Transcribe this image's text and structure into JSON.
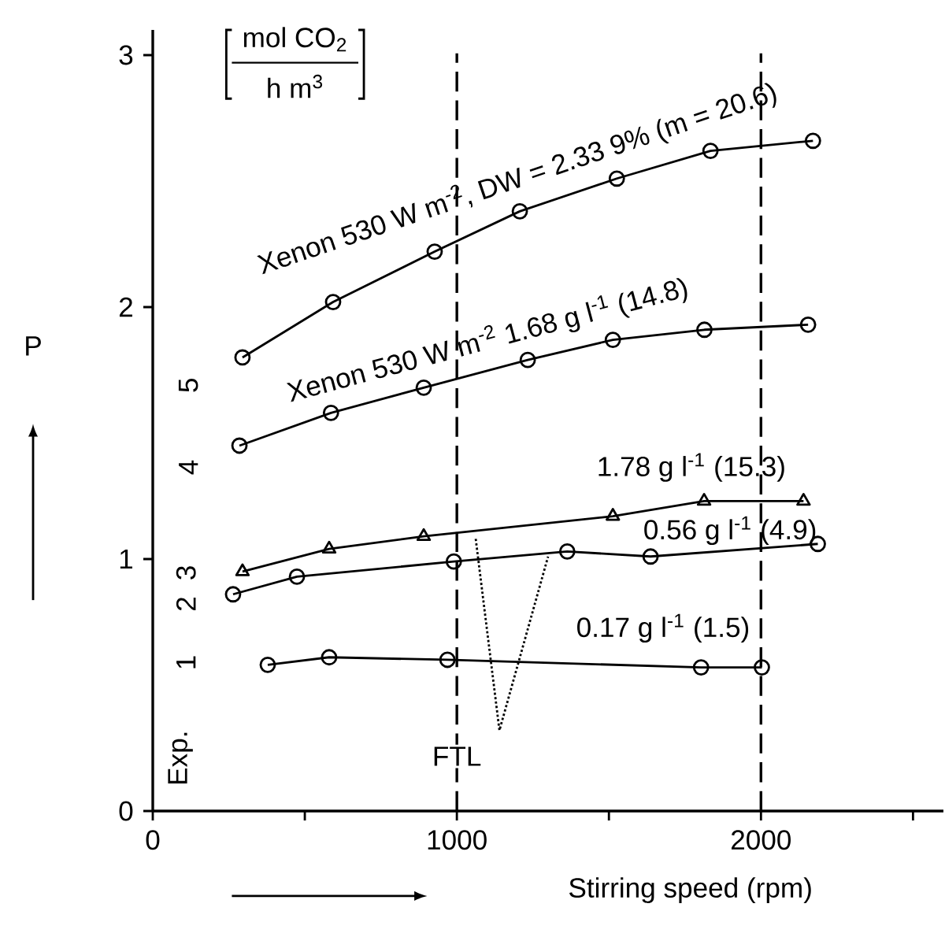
{
  "chart_data": {
    "type": "line",
    "xlabel": "Stirring speed (rpm)",
    "ylabel": "P",
    "xlim": [
      0,
      2600
    ],
    "ylim": [
      0,
      3.1
    ],
    "xticks": [
      0,
      {
        "value": 500,
        "label": null
      },
      1000,
      {
        "value": 1500,
        "label": null
      },
      2000,
      {
        "value": 2500,
        "label": null
      }
    ],
    "yticks": [
      0,
      1,
      2,
      3
    ],
    "marker": "circle",
    "grid": false,
    "annotations": [
      "mol CO$_{2}$",
      "h m$^{3}$",
      "Exp.",
      "5",
      "4",
      "3",
      "2",
      "1"
    ],
    "ref_lines": [
      {
        "axis": "x",
        "value": 1000,
        "label": "FTL",
        "line_style": "dashed"
      },
      {
        "axis": "x",
        "value": 2000,
        "line_style": "dashed"
      }
    ],
    "series": [
      {
        "name": "Xenon 530 W m$^{-2}$, DW = 2.33 9% (m = 20.6)",
        "color": "#000000",
        "x": [
          295,
          593,
          927,
          1207,
          1526,
          1834,
          2171
        ],
        "values": [
          1.8,
          2.02,
          2.22,
          2.38,
          2.51,
          2.62,
          2.66
        ]
      },
      {
        "name": "Xenon 530 W m$^{-2}$ 1.68 g l$^{-1}$ (14.8)",
        "color": "#000000",
        "x": [
          285,
          586,
          891,
          1233,
          1513,
          1814,
          2155
        ],
        "values": [
          1.45,
          1.58,
          1.68,
          1.79,
          1.87,
          1.91,
          1.93
        ]
      },
      {
        "name": "1.78 g l$^{-1}$ (15.3)",
        "color": "#000000",
        "marker": "triangle",
        "x": [
          295,
          580,
          891,
          1513,
          1813,
          2140
        ],
        "values": [
          0.95,
          1.04,
          1.09,
          1.17,
          1.23,
          1.23
        ]
      },
      {
        "name": "0.56 g l$^{-1}$ (4.9)",
        "color": "#000000",
        "x": [
          264,
          474,
          990,
          1363,
          1637,
          2187
        ],
        "values": [
          0.86,
          0.93,
          0.99,
          1.03,
          1.01,
          1.06
        ]
      },
      {
        "name": "0.17 g l$^{-1}$ (1.5)",
        "color": "#000000",
        "x": [
          378,
          580,
          969,
          1803,
          2003
        ],
        "values": [
          0.58,
          0.61,
          0.6,
          0.57,
          0.57
        ]
      },
      {
        "color": "#000000",
        "marker": "none",
        "line_style": "dotted",
        "x": [
          1062,
          1140,
          1300
        ],
        "values": [
          1.08,
          0.32,
          1.01
        ]
      }
    ]
  }
}
